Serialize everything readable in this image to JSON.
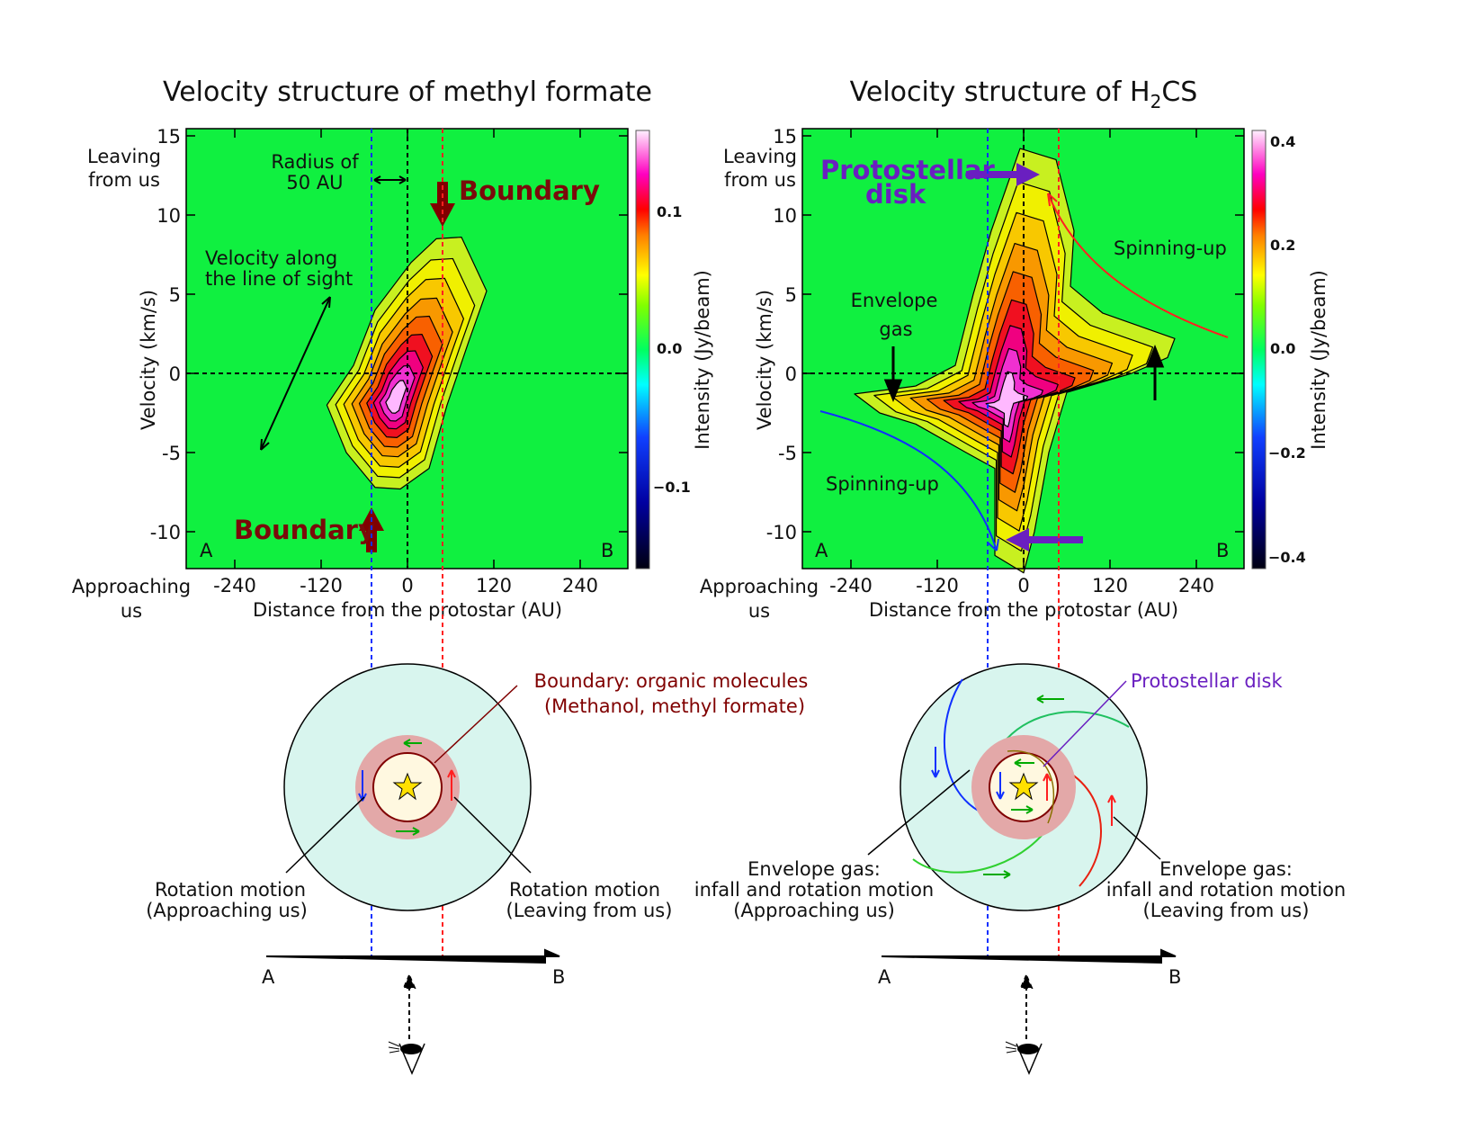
{
  "colors": {
    "background": "#00ff30",
    "blue_line": "#1030ff",
    "red_line": "#ff2020",
    "boundary": "#800000",
    "disk": "#6a1fc0",
    "envelope": "#d8f5ee",
    "ring": "#e8b0b0"
  },
  "left": {
    "title": "Velocity structure of methyl formate",
    "ylabel": "Velocity (km/s)",
    "xlabel": "Distance from the protostar (AU)",
    "cblabel": "Intensity (Jy/beam)",
    "yticks": [
      "15",
      "10",
      "5",
      "0",
      "-5",
      "-10"
    ],
    "xticks": [
      "-240",
      "-120",
      "0",
      "120",
      "240"
    ],
    "cbticks": [
      "0.1",
      "0.0",
      "−0.1"
    ],
    "leaving": [
      "Leaving",
      "from us"
    ],
    "approaching": [
      "Approaching",
      "us"
    ],
    "corner_a": "A",
    "corner_b": "B",
    "radius_label": [
      "Radius of",
      "50 AU"
    ],
    "los_label": [
      "Velocity along",
      "the line of sight"
    ],
    "boundary_top": "Boundary",
    "boundary_bottom": "Boundary",
    "diagram_label": [
      "Boundary: organic molecules",
      "(Methanol, methyl formate)"
    ],
    "rot_left": [
      "Rotation motion",
      "(Approaching us)"
    ],
    "rot_right": [
      "Rotation motion",
      "(Leaving from us)"
    ],
    "axis_a": "A",
    "axis_b": "B"
  },
  "right": {
    "title_pre": "Velocity structure of H",
    "title_sub": "2",
    "title_post": "CS",
    "ylabel": "Velocity (km/s)",
    "xlabel": "Distance from the protostar (AU)",
    "cblabel": "Intensity (Jy/beam)",
    "yticks": [
      "15",
      "10",
      "5",
      "0",
      "-5",
      "-10"
    ],
    "xticks": [
      "-240",
      "-120",
      "0",
      "120",
      "240"
    ],
    "cbticks": [
      "0.4",
      "0.2",
      "0.0",
      "−0.2",
      "−0.4"
    ],
    "leaving": [
      "Leaving",
      "from us"
    ],
    "approaching": [
      "Approaching",
      "us"
    ],
    "corner_a": "A",
    "corner_b": "B",
    "disk_label": [
      "Protostellar",
      "disk"
    ],
    "envelope_label": [
      "Envelope",
      "gas"
    ],
    "spin_top": "Spinning-up",
    "spin_bottom": "Spinning-up",
    "diagram_label": "Protostellar disk",
    "env_left": [
      "Envelope gas:",
      "infall and rotation motion",
      "(Approaching us)"
    ],
    "env_right": [
      "Envelope gas:",
      "infall and rotation motion",
      "(Leaving from us)"
    ],
    "axis_a": "A",
    "axis_b": "B"
  },
  "chart_data": [
    {
      "type": "heatmap",
      "title": "Velocity structure of methyl formate",
      "xlabel": "Distance from the protostar (AU)",
      "ylabel": "Velocity (km/s)",
      "xlim": [
        -310,
        310
      ],
      "ylim": [
        -12.5,
        15.5
      ],
      "colorbar_range": [
        -0.15,
        0.15
      ],
      "peak_position": [
        -20,
        -2
      ]
    },
    {
      "type": "heatmap",
      "title": "Velocity structure of H2CS",
      "xlabel": "Distance from the protostar (AU)",
      "ylabel": "Velocity (km/s)",
      "xlim": [
        -310,
        310
      ],
      "ylim": [
        -12.5,
        15.5
      ],
      "colorbar_range": [
        -0.42,
        0.42
      ],
      "peak_position": [
        -30,
        -3
      ]
    }
  ]
}
